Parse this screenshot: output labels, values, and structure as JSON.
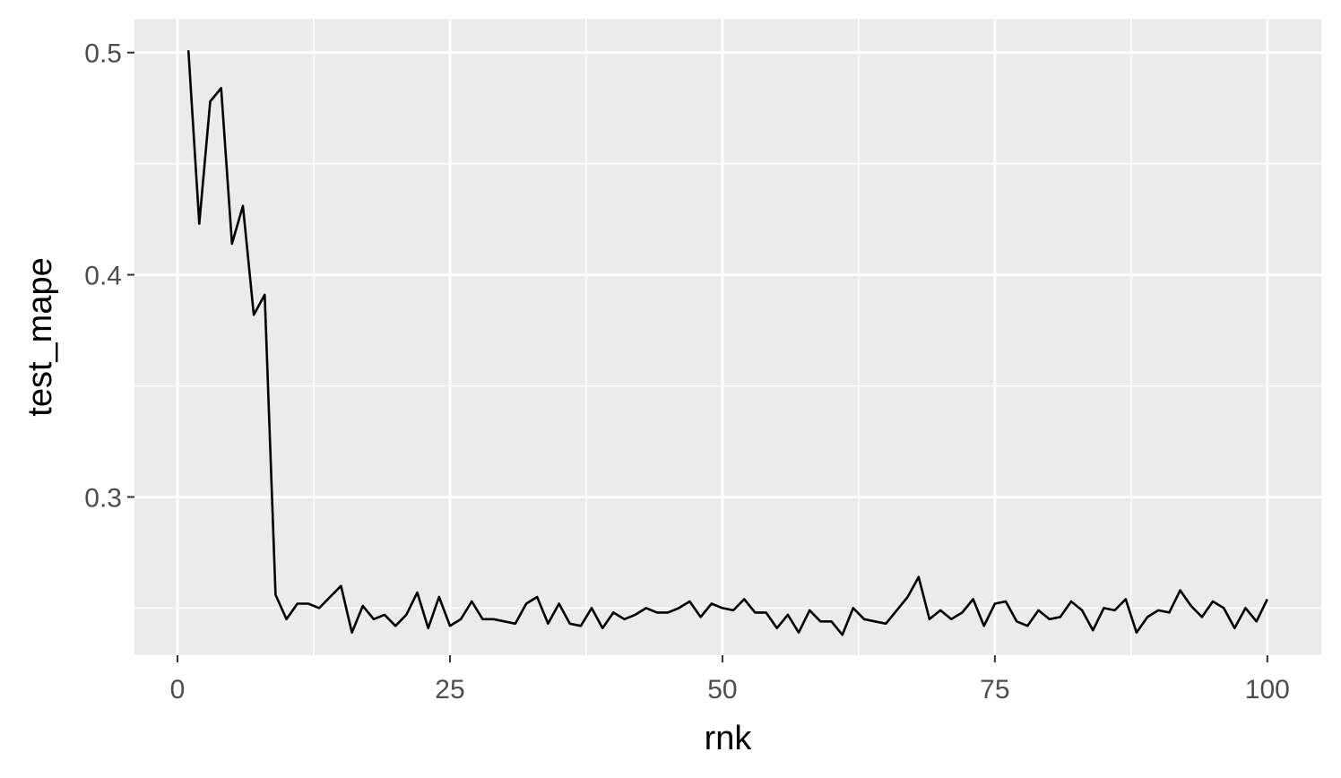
{
  "chart_data": {
    "type": "line",
    "title": "",
    "xlabel": "rnk",
    "ylabel": "test_mape",
    "xlim": [
      -3.95,
      104.95
    ],
    "ylim": [
      0.2288,
      0.5152
    ],
    "x_ticks": [
      0,
      25,
      50,
      75,
      100
    ],
    "x_tick_labels": [
      "0",
      "25",
      "50",
      "75",
      "100"
    ],
    "x_minor_ticks": [
      12.5,
      37.5,
      62.5,
      87.5
    ],
    "y_ticks": [
      0.3,
      0.4,
      0.5
    ],
    "y_tick_labels": [
      "0.3",
      "0.4",
      "0.5"
    ],
    "y_minor_ticks": [
      0.25,
      0.35,
      0.45
    ],
    "grid": true,
    "colors": {
      "panel": "#ebebeb",
      "grid": "#ffffff",
      "line": "#000000",
      "tick": "#4d4d4d"
    },
    "series": [
      {
        "x": [
          1,
          2,
          3,
          4,
          5,
          6,
          7,
          8,
          9,
          10,
          11,
          12,
          13,
          14,
          15,
          16,
          17,
          18,
          19,
          20,
          21,
          22,
          23,
          24,
          25,
          26,
          27,
          28,
          29,
          30,
          31,
          32,
          33,
          34,
          35,
          36,
          37,
          38,
          39,
          40,
          41,
          42,
          43,
          44,
          45,
          46,
          47,
          48,
          49,
          50,
          51,
          52,
          53,
          54,
          55,
          56,
          57,
          58,
          59,
          60,
          61,
          62,
          63,
          64,
          65,
          66,
          67,
          68,
          69,
          70,
          71,
          72,
          73,
          74,
          75,
          76,
          77,
          78,
          79,
          80,
          81,
          82,
          83,
          84,
          85,
          86,
          87,
          88,
          89,
          90,
          91,
          92,
          93,
          94,
          95,
          96,
          97,
          98,
          99,
          100
        ],
        "y": [
          0.501,
          0.423,
          0.478,
          0.484,
          0.414,
          0.431,
          0.382,
          0.391,
          0.256,
          0.245,
          0.252,
          0.252,
          0.25,
          0.255,
          0.26,
          0.239,
          0.251,
          0.245,
          0.247,
          0.242,
          0.247,
          0.257,
          0.241,
          0.255,
          0.242,
          0.245,
          0.253,
          0.245,
          0.245,
          0.244,
          0.243,
          0.252,
          0.255,
          0.243,
          0.252,
          0.243,
          0.242,
          0.25,
          0.241,
          0.248,
          0.245,
          0.247,
          0.25,
          0.248,
          0.248,
          0.25,
          0.253,
          0.246,
          0.252,
          0.25,
          0.249,
          0.254,
          0.248,
          0.248,
          0.241,
          0.247,
          0.239,
          0.249,
          0.244,
          0.244,
          0.238,
          0.25,
          0.245,
          0.244,
          0.243,
          0.249,
          0.255,
          0.264,
          0.245,
          0.249,
          0.245,
          0.248,
          0.254,
          0.242,
          0.252,
          0.253,
          0.244,
          0.242,
          0.249,
          0.245,
          0.246,
          0.253,
          0.249,
          0.24,
          0.25,
          0.249,
          0.254,
          0.239,
          0.246,
          0.249,
          0.248,
          0.258,
          0.251,
          0.246,
          0.253,
          0.25,
          0.241,
          0.25,
          0.244,
          0.254
        ]
      }
    ]
  }
}
